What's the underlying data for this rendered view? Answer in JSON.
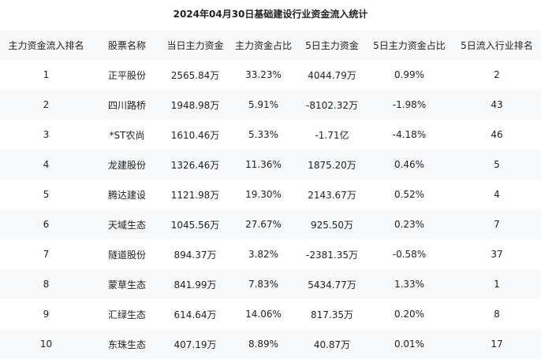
{
  "title": "2024年04月30日基础建设行业资金流入统计",
  "columns": [
    "主力资金流入排名",
    "股票名称",
    "当日主力资金",
    "主力资金占比",
    "5日主力资金",
    "5日主力资金占比",
    "5日流入行业排名"
  ],
  "rows": [
    [
      "1",
      "正平股份",
      "2565.84万",
      "33.23%",
      "4044.79万",
      "0.99%",
      "2"
    ],
    [
      "2",
      "四川路桥",
      "1948.98万",
      "5.91%",
      "-8102.32万",
      "-1.98%",
      "43"
    ],
    [
      "3",
      "*ST农尚",
      "1610.46万",
      "5.33%",
      "-1.71亿",
      "-4.18%",
      "46"
    ],
    [
      "4",
      "龙建股份",
      "1326.46万",
      "11.36%",
      "1875.20万",
      "0.46%",
      "5"
    ],
    [
      "5",
      "腾达建设",
      "1121.98万",
      "19.30%",
      "2143.67万",
      "0.52%",
      "4"
    ],
    [
      "6",
      "天域生态",
      "1045.56万",
      "27.67%",
      "925.50万",
      "0.23%",
      "7"
    ],
    [
      "7",
      "隧道股份",
      "894.37万",
      "3.82%",
      "-2381.35万",
      "-0.58%",
      "37"
    ],
    [
      "8",
      "蒙草生态",
      "841.99万",
      "7.83%",
      "5434.77万",
      "1.33%",
      "1"
    ],
    [
      "9",
      "汇绿生态",
      "614.64万",
      "14.06%",
      "817.35万",
      "0.20%",
      "8"
    ],
    [
      "10",
      "东珠生态",
      "407.19万",
      "8.89%",
      "40.87万",
      "0.01%",
      "17"
    ]
  ]
}
